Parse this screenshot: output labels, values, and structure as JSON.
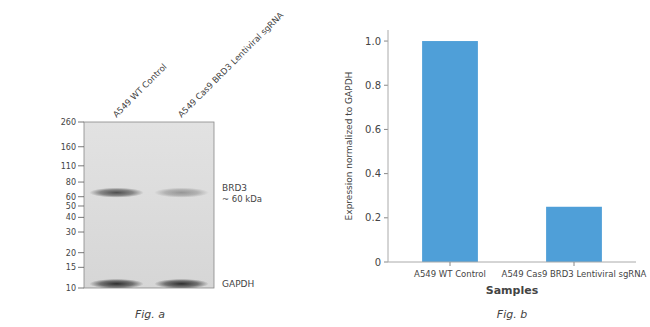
{
  "chart_data": [
    {
      "type": "blot",
      "categories": [
        "A549 WT Control",
        "A549 Cas9 BRD3 Lentiviral sgRNA"
      ],
      "log": "y",
      "ylim": [
        10,
        260
      ],
      "yticks": [
        260,
        160,
        110,
        80,
        60,
        50,
        40,
        30,
        20,
        15,
        10
      ],
      "bands": [
        {
          "name": "BRD3",
          "label": "~ 60 kDa",
          "y": 65,
          "values": [
            0.7,
            0.35
          ]
        },
        {
          "name": "GAPDH",
          "y": 10.855,
          "values": [
            0.85,
            0.85
          ]
        }
      ],
      "annotations": [
        "Fig. a"
      ]
    },
    {
      "type": "bar",
      "categories": [
        "A549 WT Control",
        "A549 Cas9 BRD3 Lentiviral sgRNA"
      ],
      "values": [
        1.0,
        0.25
      ],
      "color": "#4F9FD8",
      "xlabel": "Samples",
      "ylabel": "Expression normalized to GAPDH",
      "ylim": [
        0,
        1.05
      ],
      "yticks": [
        0,
        0.2,
        0.4,
        0.6,
        0.8,
        {
          "value": 1.0,
          "label": "1.0"
        }
      ],
      "annotations": [
        "Fig. b"
      ]
    }
  ]
}
